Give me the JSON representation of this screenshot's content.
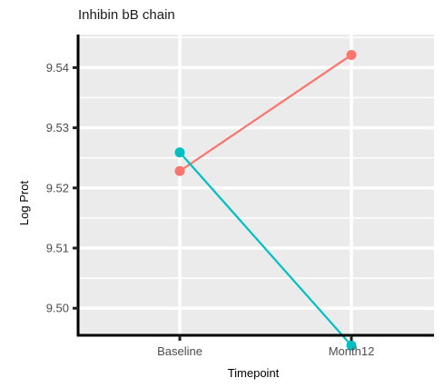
{
  "chart_data": {
    "type": "line",
    "title": "Inhibin bB chain",
    "xlabel": "Timepoint",
    "ylabel": "Log Prot",
    "categories": [
      "Baseline",
      "Month12"
    ],
    "ylim": [
      9.4955,
      9.5455
    ],
    "yticks": [
      9.5,
      9.51,
      9.52,
      9.53,
      9.54
    ],
    "ytick_labels": [
      "9.50",
      "9.51",
      "9.52",
      "9.53",
      "9.54"
    ],
    "grid": true,
    "legend": "none",
    "panel_background": "#ebebeb",
    "series": [
      {
        "color": "#f8766d",
        "values": [
          9.5228,
          9.5421
        ]
      },
      {
        "color": "#00bfc4",
        "values": [
          9.5259,
          9.4938
        ]
      }
    ]
  }
}
